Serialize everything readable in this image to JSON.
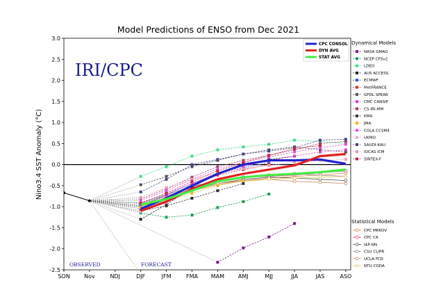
{
  "chart_data": {
    "type": "line",
    "title": "Model Predictions of ENSO from Dec 2021",
    "xlabel": "",
    "ylabel": "Nino3.4 SST Anomaly (°C)",
    "ylim": [
      -2.5,
      3.0
    ],
    "yticks": [
      -2.5,
      -2.0,
      -1.5,
      -1.0,
      -0.5,
      0.0,
      0.5,
      1.0,
      1.5,
      2.0,
      2.5,
      3.0
    ],
    "ytick_labels": [
      "-2.5",
      "-2.0",
      "-1.5",
      "-1.0",
      "-0.5",
      "0.0",
      "0.5",
      "1.0",
      "1.5",
      "2.0",
      "2.5",
      "3.0"
    ],
    "categories": [
      "SON",
      "Nov",
      "NDJ",
      "DJF",
      "JFM",
      "FMA",
      "MAM",
      "AMJ",
      "MJJ",
      "JJA",
      "JAS",
      "ASO"
    ],
    "grid": false,
    "legend_position": "right",
    "reference_line": 0.0,
    "observed": {
      "x": [
        "SON",
        "Nov"
      ],
      "values": [
        -0.67,
        -0.86
      ]
    },
    "annotations": {
      "observed": "OBSERVED",
      "forecast": "FORECAST",
      "logo": "IRI/CPC"
    },
    "consensus": [
      {
        "name": "CPC CONSOL",
        "color": "#2222cc",
        "values": [
          null,
          null,
          null,
          -1.05,
          -0.8,
          -0.5,
          -0.22,
          0.0,
          0.1,
          0.1,
          0.12,
          0.02
        ]
      },
      {
        "name": "DYN AVG",
        "color": "#e02020",
        "values": [
          null,
          null,
          null,
          -1.1,
          -0.88,
          -0.58,
          -0.35,
          -0.22,
          -0.12,
          -0.02,
          0.2,
          0.25
        ]
      },
      {
        "name": "STAT AVG",
        "color": "#44ee44",
        "values": [
          null,
          null,
          null,
          -0.95,
          -0.82,
          -0.62,
          -0.4,
          -0.3,
          -0.25,
          -0.22,
          -0.18,
          -0.12
        ]
      }
    ],
    "dynamical_title": "Dynamical Models",
    "statistical_title": "Statistical Models",
    "series": [
      {
        "name": "NASA GMAO",
        "group": "dynamical",
        "color": "#7a1f8c",
        "values": [
          null,
          null,
          null,
          null,
          null,
          null,
          -2.32,
          -1.98,
          -1.72,
          -1.4,
          null,
          null
        ]
      },
      {
        "name": "NCEP CFSv2",
        "group": "dynamical",
        "color": "#1f9e5a",
        "values": [
          null,
          null,
          null,
          -1.15,
          -1.25,
          -1.2,
          -1.02,
          -0.88,
          -0.7,
          null,
          null,
          null
        ]
      },
      {
        "name": "LDEO",
        "group": "dynamical",
        "color": "#44dd88",
        "values": [
          null,
          null,
          null,
          -0.28,
          -0.05,
          0.2,
          0.35,
          0.42,
          0.48,
          0.58,
          0.55,
          0.5
        ]
      },
      {
        "name": "AUS ACCESS",
        "group": "dynamical",
        "color": "#222222",
        "values": [
          null,
          null,
          null,
          -1.3,
          -0.95,
          -0.55,
          -0.2,
          -0.02,
          0.12,
          0.2,
          null,
          null
        ]
      },
      {
        "name": "ECMWF",
        "group": "dynamical",
        "color": "#3355dd",
        "values": [
          null,
          null,
          null,
          -0.98,
          -0.72,
          -0.45,
          -0.22,
          -0.08,
          0.05,
          null,
          null,
          null
        ]
      },
      {
        "name": "MetFRANCE",
        "group": "dynamical",
        "color": "#cc3333",
        "values": [
          null,
          null,
          null,
          -1.05,
          -0.8,
          -0.5,
          -0.25,
          -0.12,
          0.0,
          null,
          null,
          null
        ]
      },
      {
        "name": "GFDL SPEAR",
        "group": "dynamical",
        "color": "#555555",
        "values": [
          null,
          null,
          null,
          -0.48,
          -0.28,
          -0.05,
          0.1,
          0.25,
          0.35,
          0.42,
          0.35,
          0.3
        ]
      },
      {
        "name": "CMC CANSIP",
        "group": "dynamical",
        "color": "#cc44cc",
        "values": [
          null,
          null,
          null,
          -0.9,
          -0.7,
          -0.45,
          -0.2,
          -0.05,
          0.1,
          0.2,
          0.3,
          0.35
        ]
      },
      {
        "name": "CS-IRI-MM",
        "group": "dynamical",
        "color": "#99446a",
        "values": [
          null,
          null,
          null,
          -0.82,
          -0.58,
          -0.3,
          -0.05,
          0.1,
          0.22,
          0.35,
          0.5,
          0.55
        ]
      },
      {
        "name": "KMA",
        "group": "dynamical",
        "color": "#333333",
        "values": [
          null,
          null,
          null,
          -1.1,
          -0.98,
          -0.8,
          -0.62,
          -0.45,
          null,
          null,
          null,
          null
        ]
      },
      {
        "name": "JMA",
        "group": "dynamical",
        "color": "#e8b830",
        "values": [
          null,
          null,
          null,
          -1.02,
          -0.85,
          -0.68,
          -0.5,
          -0.38,
          null,
          null,
          null,
          null
        ]
      },
      {
        "name": "COLA CCSM4",
        "group": "dynamical",
        "color": "#dd55dd",
        "values": [
          null,
          null,
          null,
          -0.85,
          -0.62,
          -0.35,
          -0.1,
          0.05,
          0.18,
          0.3,
          0.4,
          0.48
        ]
      },
      {
        "name": "UKMO",
        "group": "dynamical",
        "color": "#f0a8c8",
        "values": [
          null,
          null,
          null,
          -1.12,
          -0.9,
          -0.62,
          -0.4,
          null,
          null,
          null,
          null,
          null
        ]
      },
      {
        "name": "SAUDI-KAU",
        "group": "dynamical",
        "color": "#444488",
        "values": [
          null,
          null,
          null,
          -0.65,
          -0.35,
          0.0,
          0.12,
          0.25,
          0.32,
          0.4,
          0.58,
          0.6
        ]
      },
      {
        "name": "IOCAS ICM",
        "group": "dynamical",
        "color": "#ee99aa",
        "values": [
          null,
          null,
          null,
          -0.78,
          -0.55,
          -0.35,
          -0.2,
          -0.1,
          -0.02,
          0.05,
          0.1,
          0.12
        ]
      },
      {
        "name": "SINTEX-F",
        "group": "dynamical",
        "color": "#cc2244",
        "values": [
          null,
          null,
          null,
          -0.92,
          -0.68,
          -0.4,
          -0.15,
          0.05,
          0.22,
          0.38,
          0.45,
          null
        ]
      },
      {
        "name": "CPC MRKOV",
        "group": "statistical",
        "color": "#e08a3a",
        "values": [
          null,
          null,
          null,
          -1.0,
          -0.8,
          -0.62,
          -0.48,
          -0.38,
          -0.32,
          -0.28,
          -0.25,
          -0.2
        ]
      },
      {
        "name": "CPC CA",
        "group": "statistical",
        "color": "#cc4477",
        "values": [
          null,
          null,
          null,
          -0.95,
          -0.75,
          -0.55,
          -0.4,
          -0.3,
          -0.28,
          -0.25,
          -0.2,
          -0.15
        ]
      },
      {
        "name": "IAP-NN",
        "group": "statistical",
        "color": "#555555",
        "values": [
          null,
          null,
          null,
          -1.05,
          -0.82,
          -0.6,
          -0.45,
          -0.35,
          -0.3,
          -0.32,
          -0.35,
          -0.38
        ]
      },
      {
        "name": "CSU CLIPR",
        "group": "statistical",
        "color": "#888888",
        "values": [
          null,
          null,
          null,
          -0.92,
          -0.72,
          -0.52,
          -0.38,
          -0.3,
          -0.25,
          -0.22,
          -0.25,
          -0.28
        ]
      },
      {
        "name": "UCLA-TCD",
        "group": "statistical",
        "color": "#cc8866",
        "values": [
          null,
          null,
          null,
          -0.98,
          -0.78,
          -0.58,
          -0.45,
          -0.38,
          -0.35,
          -0.4,
          -0.42,
          -0.45
        ]
      },
      {
        "name": "NTU CODA",
        "group": "statistical",
        "color": "#ddcc66",
        "values": [
          null,
          null,
          null,
          -1.0,
          -0.8,
          -0.6,
          -0.48,
          -0.4,
          -0.35,
          -0.32,
          -0.3,
          -0.28
        ]
      }
    ]
  }
}
